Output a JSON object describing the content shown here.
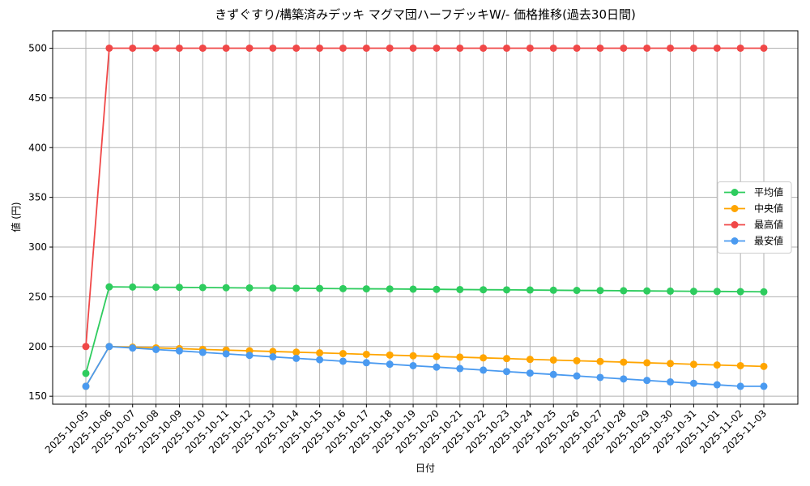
{
  "chart_data": {
    "type": "line",
    "title": "きずぐすり/構築済みデッキ マグマ団ハーフデッキW/- 価格推移(過去30日間)",
    "x_label": "日付",
    "y_label": "値 (円)",
    "categories": [
      "2025-10-05",
      "2025-10-06",
      "2025-10-07",
      "2025-10-08",
      "2025-10-09",
      "2025-10-10",
      "2025-10-11",
      "2025-10-12",
      "2025-10-13",
      "2025-10-14",
      "2025-10-15",
      "2025-10-16",
      "2025-10-17",
      "2025-10-18",
      "2025-10-19",
      "2025-10-20",
      "2025-10-21",
      "2025-10-22",
      "2025-10-23",
      "2025-10-24",
      "2025-10-25",
      "2025-10-26",
      "2025-10-27",
      "2025-10-28",
      "2025-10-29",
      "2025-10-30",
      "2025-10-31",
      "2025-11-01",
      "2025-11-02",
      "2025-11-03"
    ],
    "series": [
      {
        "name": "平均値",
        "color": "#2ecc5e",
        "values": [
          173,
          260,
          259.8,
          259.6,
          259.5,
          259.3,
          259.1,
          258.9,
          258.8,
          258.6,
          258.4,
          258.2,
          258.0,
          257.9,
          257.7,
          257.5,
          257.3,
          257.1,
          257.0,
          256.8,
          256.6,
          256.4,
          256.3,
          256.1,
          255.9,
          255.7,
          255.5,
          255.4,
          255.2,
          255.0
        ]
      },
      {
        "name": "中央値",
        "color": "#ffa500",
        "values": [
          160,
          200,
          199.3,
          198.6,
          197.9,
          197.1,
          196.4,
          195.7,
          195.0,
          194.3,
          193.6,
          192.9,
          192.1,
          191.4,
          190.7,
          190.0,
          189.3,
          188.6,
          187.9,
          187.1,
          186.4,
          185.7,
          185.0,
          184.3,
          183.6,
          182.9,
          182.1,
          181.4,
          180.7,
          180.0
        ]
      },
      {
        "name": "最高値",
        "color": "#f04848",
        "values": [
          200,
          500,
          500,
          500,
          500,
          500,
          500,
          500,
          500,
          500,
          500,
          500,
          500,
          500,
          500,
          500,
          500,
          500,
          500,
          500,
          500,
          500,
          500,
          500,
          500,
          500,
          500,
          500,
          500,
          500
        ]
      },
      {
        "name": "最安値",
        "color": "#4a9af0",
        "values": [
          160,
          200,
          198.5,
          197.0,
          195.6,
          194.1,
          192.6,
          191.1,
          189.6,
          188.1,
          186.7,
          185.2,
          183.7,
          182.2,
          180.7,
          179.3,
          177.8,
          176.3,
          174.8,
          173.3,
          171.9,
          170.4,
          168.9,
          167.4,
          165.9,
          164.4,
          163.0,
          161.5,
          160.0,
          160
        ]
      }
    ],
    "ylim": [
      142,
      517.5
    ],
    "yticks": [
      150,
      200,
      250,
      300,
      350,
      400,
      450,
      500
    ],
    "grid": true,
    "legend": "right"
  }
}
